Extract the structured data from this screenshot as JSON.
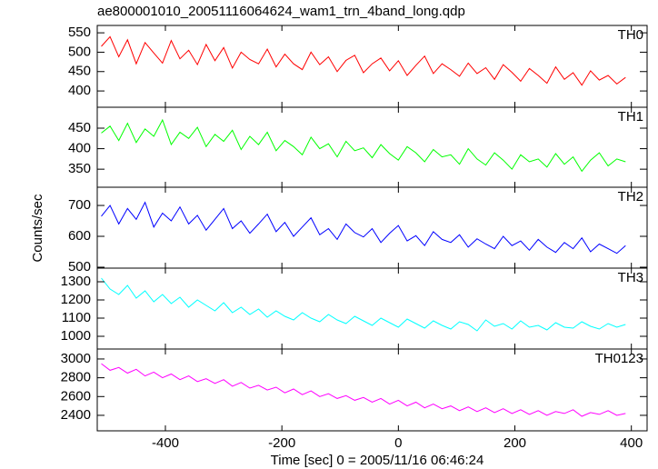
{
  "chart_data": {
    "type": "line",
    "title": "ae800001010_20051116064624_wam1_trn_4band_long.qdp",
    "xlabel": "Time [sec] 0 = 2005/11/16 06:46:24",
    "ylabel": "Counts/sec",
    "xlim": [
      -517,
      427
    ],
    "xticks": [
      -400,
      -200,
      0,
      200,
      400
    ],
    "x": [
      -510,
      -495,
      -480,
      -465,
      -450,
      -435,
      -420,
      -405,
      -390,
      -375,
      -360,
      -345,
      -330,
      -315,
      -300,
      -285,
      -270,
      -255,
      -240,
      -225,
      -210,
      -195,
      -180,
      -165,
      -150,
      -135,
      -120,
      -105,
      -90,
      -75,
      -60,
      -45,
      -30,
      -15,
      0,
      15,
      30,
      45,
      60,
      75,
      90,
      105,
      120,
      135,
      150,
      165,
      180,
      195,
      210,
      225,
      240,
      255,
      270,
      285,
      300,
      315,
      330,
      345,
      360,
      375,
      390
    ],
    "series": [
      {
        "name": "TH0",
        "color": "#ff0000",
        "ylim": [
          358,
          569
        ],
        "yticks": [
          400,
          450,
          500,
          550
        ],
        "values": [
          515,
          540,
          488,
          532,
          470,
          525,
          498,
          472,
          530,
          483,
          505,
          468,
          520,
          478,
          512,
          459,
          500,
          481,
          470,
          508,
          462,
          495,
          470,
          455,
          500,
          468,
          488,
          450,
          479,
          492,
          447,
          470,
          485,
          452,
          478,
          440,
          466,
          490,
          445,
          470,
          455,
          438,
          472,
          445,
          460,
          430,
          468,
          448,
          425,
          458,
          440,
          420,
          462,
          430,
          447,
          415,
          452,
          428,
          440,
          418,
          435
        ]
      },
      {
        "name": "TH1",
        "color": "#00ff00",
        "ylim": [
          306,
          501
        ],
        "yticks": [
          350,
          400,
          450
        ],
        "values": [
          438,
          455,
          420,
          462,
          415,
          448,
          430,
          470,
          410,
          440,
          425,
          452,
          405,
          435,
          418,
          445,
          398,
          430,
          410,
          440,
          395,
          420,
          405,
          385,
          428,
          400,
          412,
          380,
          418,
          395,
          402,
          378,
          410,
          388,
          372,
          405,
          390,
          368,
          398,
          380,
          385,
          362,
          400,
          375,
          360,
          390,
          372,
          350,
          385,
          368,
          375,
          355,
          388,
          362,
          380,
          345,
          372,
          390,
          358,
          375,
          368
        ]
      },
      {
        "name": "TH2",
        "color": "#0000ff",
        "ylim": [
          497,
          759
        ],
        "yticks": [
          500,
          600,
          700
        ],
        "values": [
          665,
          700,
          640,
          690,
          655,
          710,
          630,
          675,
          650,
          695,
          640,
          668,
          620,
          655,
          690,
          625,
          650,
          610,
          640,
          672,
          615,
          645,
          600,
          630,
          660,
          605,
          625,
          590,
          640,
          612,
          598,
          625,
          580,
          610,
          635,
          585,
          602,
          570,
          615,
          590,
          580,
          605,
          565,
          592,
          575,
          560,
          600,
          570,
          585,
          555,
          590,
          565,
          548,
          580,
          560,
          595,
          550,
          575,
          560,
          545,
          570
        ]
      },
      {
        "name": "TH3",
        "color": "#00ffff",
        "ylim": [
          930,
          1375
        ],
        "yticks": [
          1000,
          1100,
          1200,
          1300
        ],
        "values": [
          1320,
          1260,
          1230,
          1280,
          1210,
          1250,
          1190,
          1230,
          1180,
          1215,
          1160,
          1200,
          1170,
          1140,
          1185,
          1130,
          1160,
          1120,
          1150,
          1105,
          1140,
          1110,
          1090,
          1130,
          1100,
          1080,
          1120,
          1090,
          1070,
          1110,
          1085,
          1060,
          1100,
          1075,
          1050,
          1095,
          1070,
          1045,
          1085,
          1060,
          1040,
          1080,
          1065,
          1030,
          1090,
          1055,
          1070,
          1040,
          1085,
          1050,
          1060,
          1035,
          1075,
          1050,
          1045,
          1080,
          1055,
          1040,
          1070,
          1050,
          1065
        ]
      },
      {
        "name": "TH0123",
        "color": "#ff00ff",
        "ylim": [
          2235,
          3106
        ],
        "yticks": [
          2400,
          2600,
          2800,
          3000
        ],
        "values": [
          2950,
          2880,
          2910,
          2850,
          2890,
          2820,
          2860,
          2800,
          2840,
          2780,
          2820,
          2760,
          2790,
          2740,
          2780,
          2710,
          2750,
          2690,
          2720,
          2670,
          2700,
          2640,
          2680,
          2620,
          2660,
          2600,
          2630,
          2580,
          2610,
          2560,
          2590,
          2540,
          2580,
          2520,
          2560,
          2500,
          2540,
          2480,
          2520,
          2470,
          2500,
          2450,
          2490,
          2440,
          2480,
          2430,
          2470,
          2420,
          2460,
          2410,
          2450,
          2400,
          2440,
          2420,
          2460,
          2390,
          2430,
          2410,
          2450,
          2400,
          2420
        ]
      }
    ]
  }
}
